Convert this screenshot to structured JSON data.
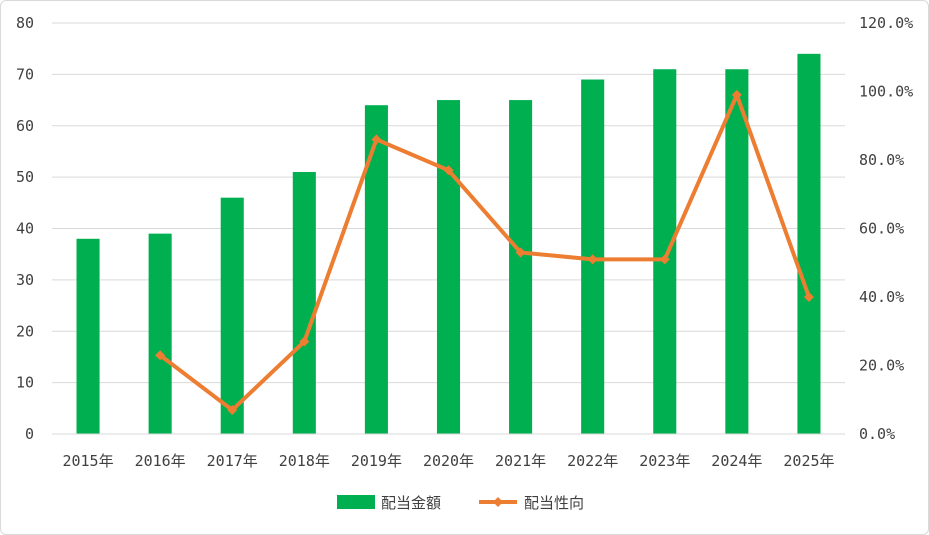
{
  "chart_data": {
    "type": "bar+line",
    "categories": [
      "2015年",
      "2016年",
      "2017年",
      "2018年",
      "2019年",
      "2020年",
      "2021年",
      "2022年",
      "2023年",
      "2024年",
      "2025年"
    ],
    "series": [
      {
        "name": "配当金額",
        "type": "bar",
        "axis": "left",
        "color": "#00b050",
        "values": [
          38,
          39,
          46,
          51,
          64,
          65,
          65,
          69,
          71,
          71,
          74
        ]
      },
      {
        "name": "配当性向",
        "type": "line",
        "axis": "right",
        "color": "#ed7d31",
        "values": [
          null,
          23.0,
          7.0,
          27.0,
          86.0,
          77.0,
          53.0,
          51.0,
          51.0,
          99.0,
          40.0
        ]
      }
    ],
    "y_left": {
      "min": 0,
      "max": 80,
      "step": 10,
      "ticks": [
        "0",
        "10",
        "20",
        "30",
        "40",
        "50",
        "60",
        "70",
        "80"
      ]
    },
    "y_right": {
      "min": 0,
      "max": 120,
      "step": 20,
      "ticks": [
        "0.0%",
        "20.0%",
        "40.0%",
        "60.0%",
        "80.0%",
        "100.0%",
        "120.0%"
      ]
    },
    "grid": true,
    "legend": "bottom"
  }
}
